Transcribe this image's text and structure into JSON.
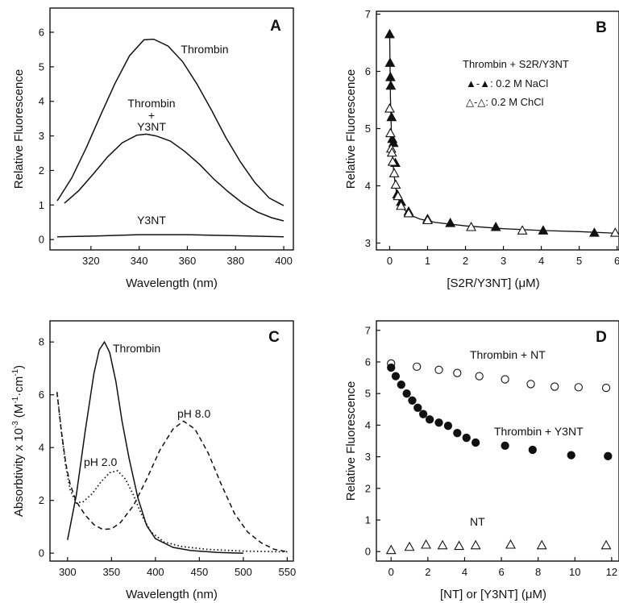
{
  "panels": [
    {
      "id": "A",
      "letter": "A",
      "chart_data": {
        "type": "line",
        "xlabel": "Wavelength  (nm)",
        "ylabel": "Relative Fluorescence",
        "xlim": [
          303,
          404
        ],
        "ylim": [
          -0.3,
          6.7
        ],
        "xticks": [
          320,
          340,
          360,
          380,
          400
        ],
        "yticks": [
          0,
          1,
          2,
          3,
          4,
          5,
          6
        ],
        "series": [
          {
            "name": "Thrombin",
            "style": "solid",
            "x": [
              306,
              312,
              318,
              324,
              330,
              336,
              342,
              346,
              352,
              358,
              364,
              370,
              376,
              382,
              388,
              394,
              400
            ],
            "y": [
              1.12,
              1.78,
              2.65,
              3.6,
              4.52,
              5.32,
              5.78,
              5.8,
              5.6,
              5.15,
              4.5,
              3.75,
              2.95,
              2.25,
              1.65,
              1.2,
              0.98
            ]
          },
          {
            "name": "Thrombin + Y3NT",
            "style": "solid",
            "x": [
              309,
              315,
              321,
              327,
              333,
              339,
              343,
              347,
              353,
              359,
              365,
              371,
              377,
              383,
              389,
              395,
              400
            ],
            "y": [
              1.05,
              1.42,
              1.9,
              2.4,
              2.8,
              3.02,
              3.05,
              3.0,
              2.85,
              2.55,
              2.18,
              1.75,
              1.38,
              1.05,
              0.8,
              0.63,
              0.54
            ]
          },
          {
            "name": "Y3NT",
            "style": "solid",
            "x": [
              306,
              320,
              340,
              360,
              380,
              400
            ],
            "y": [
              0.08,
              0.1,
              0.14,
              0.14,
              0.11,
              0.08
            ]
          }
        ],
        "annotations": [
          "Thrombin",
          "Thrombin",
          "+",
          "Y3NT",
          "Y3NT"
        ]
      }
    },
    {
      "id": "B",
      "letter": "B",
      "chart_data": {
        "type": "scatter",
        "xlabel": "[S2R/Y3NT]  (μM)",
        "ylabel": "Relative Fluorescence",
        "xlim": [
          -0.35,
          6.05
        ],
        "ylim": [
          2.88,
          7.05
        ],
        "xticks": [
          0,
          1,
          2,
          3,
          4,
          5,
          6
        ],
        "yticks": [
          3,
          4,
          5,
          6,
          7
        ],
        "legend_title": "Thrombin + S2R/Y3NT",
        "series": [
          {
            "name": "▲-▲: 0.2 M NaCl",
            "marker": "filled-triangle",
            "x": [
              0,
              0.01,
              0.02,
              0.03,
              0.05,
              0.07,
              0.1,
              0.15,
              0.2,
              0.3,
              0.5,
              1.0,
              1.6,
              2.8,
              4.05,
              5.4
            ],
            "y": [
              6.65,
              6.15,
              5.9,
              5.75,
              5.2,
              4.82,
              4.75,
              4.4,
              3.85,
              3.72,
              3.55,
              3.42,
              3.35,
              3.28,
              3.22,
              3.18
            ]
          },
          {
            "name": "△-△: 0.2 M ChCl",
            "marker": "open-triangle",
            "x": [
              0,
              0.02,
              0.04,
              0.06,
              0.08,
              0.12,
              0.16,
              0.22,
              0.3,
              0.5,
              1.0,
              2.15,
              3.5,
              5.95
            ],
            "y": [
              5.35,
              4.92,
              4.65,
              4.58,
              4.42,
              4.22,
              4.02,
              3.82,
              3.65,
              3.52,
              3.4,
              3.28,
              3.22,
              3.18
            ]
          }
        ],
        "fit_curve": {
          "x": [
            0,
            0.02,
            0.05,
            0.1,
            0.15,
            0.2,
            0.3,
            0.5,
            0.8,
            1.2,
            2,
            3,
            4,
            5,
            6
          ],
          "y": [
            6.6,
            5.55,
            4.85,
            4.3,
            4.0,
            3.82,
            3.65,
            3.5,
            3.42,
            3.36,
            3.3,
            3.25,
            3.22,
            3.2,
            3.17
          ]
        }
      }
    },
    {
      "id": "C",
      "letter": "C",
      "chart_data": {
        "type": "line",
        "xlabel": "Wavelength  (nm)",
        "ylabel_main": "Absorbtivity x 10",
        "ylabel_exp": "-3",
        "ylabel_unit": "(M",
        "ylabel_unit_exp1": "-1",
        "ylabel_unit_mid": "·cm",
        "ylabel_unit_exp2": "-1",
        "ylabel_unit_end": ")",
        "xlim": [
          280,
          557
        ],
        "ylim": [
          -0.3,
          8.8
        ],
        "xticks": [
          300,
          350,
          400,
          450,
          500,
          550
        ],
        "yticks": [
          0,
          2,
          4,
          6,
          8
        ],
        "series": [
          {
            "name": "Thrombin",
            "style": "solid",
            "x": [
              300,
              310,
              320,
              330,
              336,
              342,
              348,
              355,
              362,
              370,
              380,
              390,
              400,
              420,
              440,
              470,
              500
            ],
            "y": [
              0.5,
              2.2,
              4.6,
              6.8,
              7.7,
              8.0,
              7.6,
              6.5,
              5.0,
              3.6,
              2.1,
              1.05,
              0.55,
              0.22,
              0.1,
              0.03,
              0.0
            ]
          },
          {
            "name": "pH 2.0",
            "style": "dotted",
            "x": [
              288,
              293,
              298,
              303,
              310,
              318,
              328,
              338,
              348,
              357,
              366,
              375,
              385,
              395,
              410,
              430,
              460,
              500,
              530,
              552
            ],
            "y": [
              6.1,
              4.6,
              3.3,
              2.4,
              1.9,
              1.95,
              2.25,
              2.7,
              3.05,
              3.12,
              2.8,
              2.2,
              1.4,
              0.8,
              0.42,
              0.25,
              0.14,
              0.08,
              0.06,
              0.05
            ]
          },
          {
            "name": "pH 8.0",
            "style": "dashed",
            "x": [
              288,
              293,
              298,
              303,
              310,
              320,
              330,
              340,
              350,
              360,
              375,
              390,
              405,
              420,
              432,
              445,
              460,
              475,
              490,
              505,
              520,
              535,
              550
            ],
            "y": [
              6.1,
              4.6,
              3.4,
              2.6,
              1.95,
              1.45,
              1.08,
              0.9,
              0.92,
              1.15,
              1.8,
              2.8,
              3.9,
              4.7,
              5.0,
              4.7,
              3.8,
              2.6,
              1.5,
              0.8,
              0.4,
              0.15,
              0.05
            ]
          }
        ],
        "annotations": [
          "Thrombin",
          "pH 2.0",
          "pH 8.0"
        ]
      }
    },
    {
      "id": "D",
      "letter": "D",
      "chart_data": {
        "type": "scatter",
        "xlabel": "[NT] or [Y3NT]  (μM)",
        "ylabel": "Relative Fluorescence",
        "xlim": [
          -0.8,
          12.4
        ],
        "ylim": [
          -0.3,
          7.3
        ],
        "xticks": [
          0,
          2,
          4,
          6,
          8,
          10,
          12
        ],
        "yticks": [
          0,
          1,
          2,
          3,
          4,
          5,
          6,
          7
        ],
        "series": [
          {
            "name": "Thrombin + NT",
            "marker": "open-circle",
            "x": [
              0,
              1.4,
              2.6,
              3.6,
              4.8,
              6.2,
              7.6,
              8.9,
              10.2,
              11.7
            ],
            "y": [
              5.95,
              5.85,
              5.75,
              5.65,
              5.55,
              5.45,
              5.3,
              5.22,
              5.2,
              5.18
            ]
          },
          {
            "name": "Thrombin + Y3NT",
            "marker": "filled-circle",
            "x": [
              0,
              0.25,
              0.55,
              0.85,
              1.15,
              1.45,
              1.75,
              2.1,
              2.6,
              3.1,
              3.6,
              4.1,
              4.6,
              6.2,
              7.7,
              9.8,
              11.8
            ],
            "y": [
              5.82,
              5.55,
              5.28,
              5.0,
              4.78,
              4.55,
              4.35,
              4.18,
              4.08,
              3.98,
              3.75,
              3.6,
              3.45,
              3.35,
              3.22,
              3.05,
              3.02
            ]
          },
          {
            "name": "NT",
            "marker": "open-triangle",
            "x": [
              0,
              1.0,
              1.9,
              2.8,
              3.7,
              4.6,
              6.5,
              8.2,
              11.7
            ],
            "y": [
              0.05,
              0.15,
              0.22,
              0.2,
              0.18,
              0.2,
              0.22,
              0.2,
              0.2
            ]
          }
        ],
        "annotations": [
          "Thrombin + NT",
          "Thrombin + Y3NT",
          "NT"
        ]
      }
    }
  ]
}
